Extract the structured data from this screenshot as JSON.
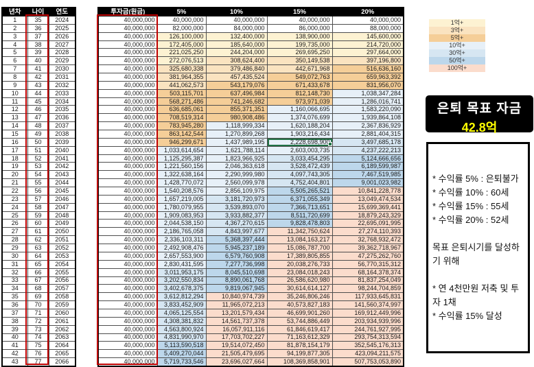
{
  "table": {
    "headers": {
      "left": [
        "년차",
        "나이",
        "연도"
      ],
      "right": [
        "투자금(원금)",
        "5%",
        "10%",
        "15%",
        "20%"
      ]
    },
    "rows": [
      [
        "1",
        "35",
        "2024",
        "40,000,000",
        "40,000,000",
        "40,000,000",
        "40,000,000",
        "40,000,000"
      ],
      [
        "2",
        "36",
        "2025",
        "40,000,000",
        "82,000,000",
        "84,000,000",
        "86,000,000",
        "88,000,000"
      ],
      [
        "3",
        "37",
        "2026",
        "40,000,000",
        "126,100,000",
        "132,400,000",
        "138,900,000",
        "145,600,000"
      ],
      [
        "4",
        "38",
        "2027",
        "40,000,000",
        "172,405,000",
        "185,640,000",
        "199,735,000",
        "214,720,000"
      ],
      [
        "5",
        "39",
        "2028",
        "40,000,000",
        "221,025,250",
        "244,204,000",
        "269,695,250",
        "297,664,000"
      ],
      [
        "6",
        "40",
        "2029",
        "40,000,000",
        "272,076,513",
        "308,624,400",
        "350,149,538",
        "397,196,800"
      ],
      [
        "7",
        "41",
        "2030",
        "40,000,000",
        "325,680,338",
        "379,486,840",
        "442,671,968",
        "516,636,160"
      ],
      [
        "8",
        "42",
        "2031",
        "40,000,000",
        "381,964,355",
        "457,435,524",
        "549,072,763",
        "659,963,392"
      ],
      [
        "9",
        "43",
        "2032",
        "40,000,000",
        "441,062,573",
        "543,179,076",
        "671,433,678",
        "831,956,070"
      ],
      [
        "10",
        "44",
        "2033",
        "40,000,000",
        "503,115,701",
        "637,496,984",
        "812,148,730",
        "1,038,347,284"
      ],
      [
        "11",
        "45",
        "2034",
        "40,000,000",
        "568,271,486",
        "741,246,682",
        "973,971,039",
        "1,286,016,741"
      ],
      [
        "12",
        "46",
        "2035",
        "40,000,000",
        "636,685,061",
        "855,371,351",
        "1,160,066,695",
        "1,583,220,090"
      ],
      [
        "13",
        "47",
        "2036",
        "40,000,000",
        "708,519,314",
        "980,908,486",
        "1,374,076,699",
        "1,939,864,108"
      ],
      [
        "14",
        "48",
        "2037",
        "40,000,000",
        "783,945,280",
        "1,118,999,334",
        "1,620,188,204",
        "2,367,836,929"
      ],
      [
        "15",
        "49",
        "2038",
        "40,000,000",
        "863,142,544",
        "1,270,899,268",
        "1,903,216,434",
        "2,881,404,315"
      ],
      [
        "16",
        "50",
        "2039",
        "40,000,000",
        "946,299,671",
        "1,437,989,195",
        "2,228,698,900",
        "3,497,685,178"
      ],
      [
        "17",
        "51",
        "2040",
        "40,000,000",
        "1,033,614,654",
        "1,621,788,114",
        "2,603,003,735",
        "4,237,222,213"
      ],
      [
        "18",
        "52",
        "2041",
        "40,000,000",
        "1,125,295,387",
        "1,823,966,925",
        "3,033,454,295",
        "5,124,666,656"
      ],
      [
        "19",
        "53",
        "2042",
        "40,000,000",
        "1,221,560,156",
        "2,046,363,618",
        "3,528,472,439",
        "6,189,599,987"
      ],
      [
        "20",
        "54",
        "2043",
        "40,000,000",
        "1,322,638,164",
        "2,290,999,980",
        "4,097,743,305",
        "7,467,519,985"
      ],
      [
        "21",
        "55",
        "2044",
        "40,000,000",
        "1,428,770,072",
        "2,560,099,978",
        "4,752,404,801",
        "9,001,023,982"
      ],
      [
        "22",
        "56",
        "2045",
        "40,000,000",
        "1,540,208,576",
        "2,856,109,975",
        "5,505,265,521",
        "10,841,228,778"
      ],
      [
        "23",
        "57",
        "2046",
        "40,000,000",
        "1,657,219,005",
        "3,181,720,973",
        "6,371,055,349",
        "13,049,474,534"
      ],
      [
        "24",
        "58",
        "2047",
        "40,000,000",
        "1,780,079,955",
        "3,539,893,070",
        "7,366,713,651",
        "15,699,369,441"
      ],
      [
        "25",
        "59",
        "2048",
        "40,000,000",
        "1,909,083,953",
        "3,933,882,377",
        "8,511,720,699",
        "18,879,243,329"
      ],
      [
        "26",
        "60",
        "2049",
        "40,000,000",
        "2,044,538,150",
        "4,367,270,615",
        "9,828,478,803",
        "22,695,091,995"
      ],
      [
        "27",
        "61",
        "2050",
        "40,000,000",
        "2,186,765,058",
        "4,843,997,677",
        "11,342,750,624",
        "27,274,110,393"
      ],
      [
        "28",
        "62",
        "2051",
        "40,000,000",
        "2,336,103,311",
        "5,368,397,444",
        "13,084,163,217",
        "32,768,932,472"
      ],
      [
        "29",
        "63",
        "2052",
        "40,000,000",
        "2,492,908,476",
        "5,945,237,189",
        "15,086,787,700",
        "39,362,718,967"
      ],
      [
        "30",
        "64",
        "2053",
        "40,000,000",
        "2,657,553,900",
        "6,579,760,908",
        "17,389,805,855",
        "47,275,262,760"
      ],
      [
        "31",
        "65",
        "2054",
        "40,000,000",
        "2,830,431,595",
        "7,277,736,998",
        "20,038,276,733",
        "56,770,315,312"
      ],
      [
        "32",
        "66",
        "2055",
        "40,000,000",
        "3,011,953,175",
        "8,045,510,698",
        "23,084,018,243",
        "68,164,378,374"
      ],
      [
        "33",
        "67",
        "2056",
        "40,000,000",
        "3,202,550,834",
        "8,890,061,768",
        "26,586,620,980",
        "81,837,254,049"
      ],
      [
        "34",
        "68",
        "2057",
        "40,000,000",
        "3,402,678,375",
        "9,819,067,945",
        "30,614,614,127",
        "98,244,704,859"
      ],
      [
        "35",
        "69",
        "2058",
        "40,000,000",
        "3,612,812,294",
        "10,840,974,739",
        "35,246,806,246",
        "117,933,645,831"
      ],
      [
        "36",
        "70",
        "2059",
        "40,000,000",
        "3,833,452,909",
        "11,965,072,213",
        "40,573,827,183",
        "141,560,374,997"
      ],
      [
        "37",
        "71",
        "2060",
        "40,000,000",
        "4,065,125,554",
        "13,201,579,434",
        "46,699,901,260",
        "169,912,449,996"
      ],
      [
        "38",
        "72",
        "2061",
        "40,000,000",
        "4,308,381,832",
        "14,561,737,378",
        "53,744,886,449",
        "203,934,939,996"
      ],
      [
        "39",
        "73",
        "2062",
        "40,000,000",
        "4,563,800,924",
        "16,057,911,116",
        "61,846,619,417",
        "244,761,927,995"
      ],
      [
        "40",
        "74",
        "2063",
        "40,000,000",
        "4,831,990,970",
        "17,703,702,227",
        "71,163,612,329",
        "293,754,313,594"
      ],
      [
        "41",
        "75",
        "2064",
        "40,000,000",
        "5,113,590,518",
        "19,514,072,450",
        "81,878,154,179",
        "352,545,176,313"
      ],
      [
        "42",
        "76",
        "2065",
        "40,000,000",
        "5,409,270,044",
        "21,505,479,695",
        "94,199,877,305",
        "423,094,211,575"
      ],
      [
        "43",
        "77",
        "2066",
        "40,000,000",
        "5,719,733,546",
        "23,696,027,664",
        "108,369,858,901",
        "507,753,053,890"
      ]
    ]
  },
  "selection": {
    "row": 16,
    "column": "15%"
  },
  "legend": {
    "items": [
      {
        "label": "1억+",
        "color": "#FDF2D2"
      },
      {
        "label": "3억+",
        "color": "#FAE3C0"
      },
      {
        "label": "5억+",
        "color": "#F5CE98"
      },
      {
        "label": "10억+",
        "color": "#E7F0F8"
      },
      {
        "label": "30억+",
        "color": "#D6E6F2"
      },
      {
        "label": "50억+",
        "color": "#BDD7EB"
      },
      {
        "label": "100억+",
        "color": "#FBDCCC"
      }
    ]
  },
  "value_colors": [
    {
      "min": 10000000000,
      "color": "#FBDCCC"
    },
    {
      "min": 5000000000,
      "color": "#BDD7EB"
    },
    {
      "min": 3000000000,
      "color": "#D6E6F2"
    },
    {
      "min": 1000000000,
      "color": "#E7F0F8"
    },
    {
      "min": 500000000,
      "color": "#F5CE98"
    },
    {
      "min": 300000000,
      "color": "#FAE3C0"
    },
    {
      "min": 100000000,
      "color": "#FDF2D2"
    },
    {
      "min": 0,
      "color": "#FFFFFF"
    }
  ],
  "target_box": {
    "title": "은퇴 목표 자금",
    "value": "42.8억"
  },
  "notes": {
    "lines": [
      "* 수익률 5% : 은퇴불가",
      "* 수익률 10% : 60세",
      "* 수익률 15% : 55세",
      "* 수익률 20% : 52세",
      "",
      "목표 은퇴시기를 달성하기 위해",
      "",
      "* 연 4천만원 저축 및 투자 1채",
      "* 수익률 15% 달성"
    ]
  },
  "colors": {
    "header_bg": "#000000",
    "header_text": "#FFFFFF",
    "column_highlight_red": "#C00000",
    "selection_green": "#217346",
    "target_value_yellow": "#FFFF00"
  }
}
